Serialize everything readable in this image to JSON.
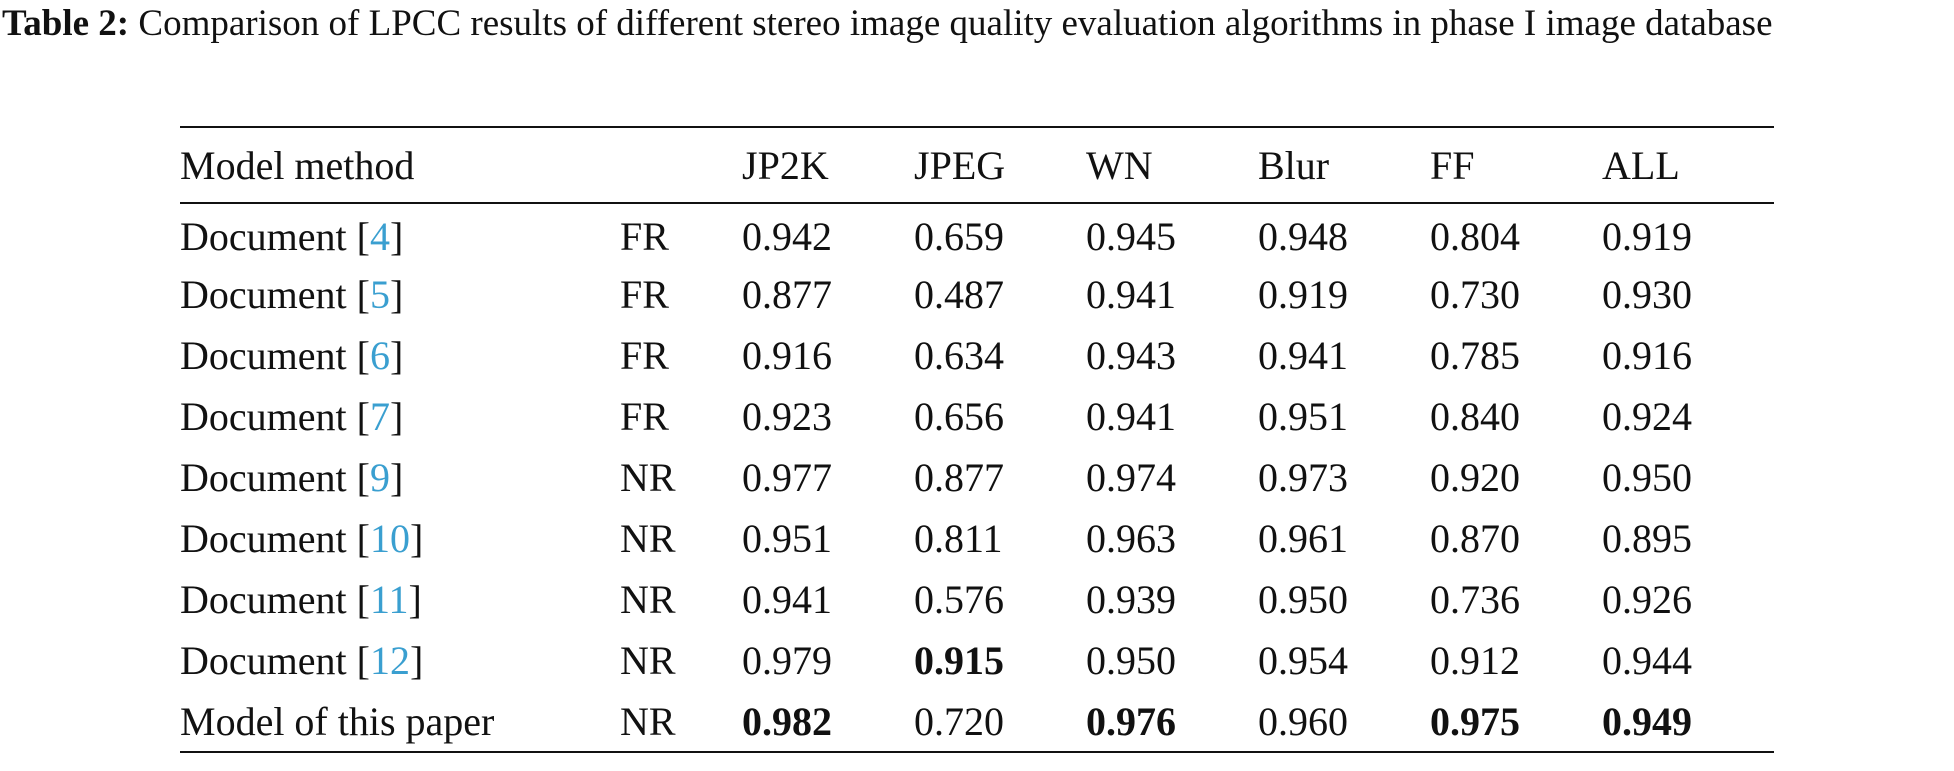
{
  "caption": {
    "label": "Table 2:",
    "text": " Comparison of LPCC results of different stereo image quality evaluation algorithms in phase I image database"
  },
  "table": {
    "headers": [
      "Model method",
      "",
      "JP2K",
      "JPEG",
      "WN",
      "Blur",
      "FF",
      "ALL"
    ],
    "rows": [
      {
        "method": "Document [",
        "ref": "4",
        "close": "]",
        "type": "FR",
        "values": [
          "0.942",
          "0.659",
          "0.945",
          "0.948",
          "0.804",
          "0.919"
        ],
        "bold": []
      },
      {
        "method": "Document [",
        "ref": "5",
        "close": "]",
        "type": "FR",
        "values": [
          "0.877",
          "0.487",
          "0.941",
          "0.919",
          "0.730",
          "0.930"
        ],
        "bold": []
      },
      {
        "method": "Document [",
        "ref": "6",
        "close": "]",
        "type": "FR",
        "values": [
          "0.916",
          "0.634",
          "0.943",
          "0.941",
          "0.785",
          "0.916"
        ],
        "bold": []
      },
      {
        "method": "Document [",
        "ref": "7",
        "close": "]",
        "type": "FR",
        "values": [
          "0.923",
          "0.656",
          "0.941",
          "0.951",
          "0.840",
          "0.924"
        ],
        "bold": []
      },
      {
        "method": "Document [",
        "ref": "9",
        "close": "]",
        "type": "NR",
        "values": [
          "0.977",
          "0.877",
          "0.974",
          "0.973",
          "0.920",
          "0.950"
        ],
        "bold": []
      },
      {
        "method": "Document [",
        "ref": "10",
        "close": "]",
        "type": "NR",
        "values": [
          "0.951",
          "0.811",
          "0.963",
          "0.961",
          "0.870",
          "0.895"
        ],
        "bold": []
      },
      {
        "method": "Document [",
        "ref": "11",
        "close": "]",
        "type": "NR",
        "values": [
          "0.941",
          "0.576",
          "0.939",
          "0.950",
          "0.736",
          "0.926"
        ],
        "bold": []
      },
      {
        "method": "Document [",
        "ref": "12",
        "close": "]",
        "type": "NR",
        "values": [
          "0.979",
          "0.915",
          "0.950",
          "0.954",
          "0.912",
          "0.944"
        ],
        "bold": [
          1
        ]
      },
      {
        "method": "Model of this paper",
        "ref": "",
        "close": "",
        "type": "NR",
        "values": [
          "0.982",
          "0.720",
          "0.976",
          "0.960",
          "0.975",
          "0.949"
        ],
        "bold": [
          0,
          2,
          4,
          5
        ]
      }
    ]
  },
  "colors": {
    "reference_link": "#3a9fd0",
    "text": "#111111"
  }
}
